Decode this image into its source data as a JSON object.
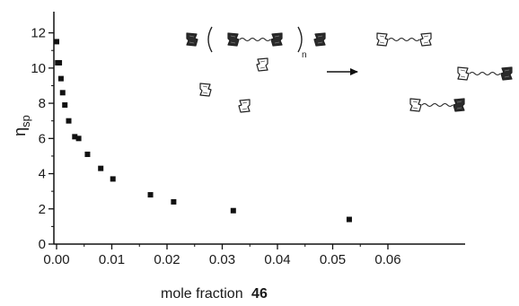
{
  "chart_data": {
    "type": "scatter",
    "title": "",
    "xlabel": "mole fraction",
    "xlabel_bold": "46",
    "ylabel_main": "η",
    "ylabel_sub": "sp",
    "xlim": [
      -0.002,
      0.06
    ],
    "ylim": [
      0,
      13
    ],
    "x_ticks": [
      0.0,
      0.01,
      0.02,
      0.03,
      0.04,
      0.05,
      0.06
    ],
    "x_tick_labels": [
      "0.00",
      "0.01",
      "0.02",
      "0.03",
      "0.04",
      "0.05",
      "0.06"
    ],
    "y_ticks": [
      0,
      2,
      4,
      6,
      8,
      10,
      12
    ],
    "y_tick_labels": [
      "0",
      "2",
      "4",
      "6",
      "8",
      "10",
      "12"
    ],
    "grid": false,
    "marker": "filled-square",
    "marker_color": "#111111",
    "series": [
      {
        "x": [
          0.0,
          0.0002,
          0.0005,
          0.0008,
          0.0011,
          0.0015,
          0.0022,
          0.0033,
          0.004,
          0.0056,
          0.008,
          0.0102,
          0.017,
          0.0212,
          0.032,
          0.053
        ],
        "y": [
          11.5,
          10.3,
          10.3,
          9.4,
          8.6,
          7.9,
          7.0,
          6.1,
          6.0,
          5.1,
          4.3,
          3.7,
          2.8,
          2.4,
          1.9,
          1.4
        ]
      }
    ]
  },
  "inset": {
    "subscript_n": "n",
    "arrow_color": "#111111",
    "dark_color": "#2b2b2b",
    "light_color": "#ffffff"
  }
}
